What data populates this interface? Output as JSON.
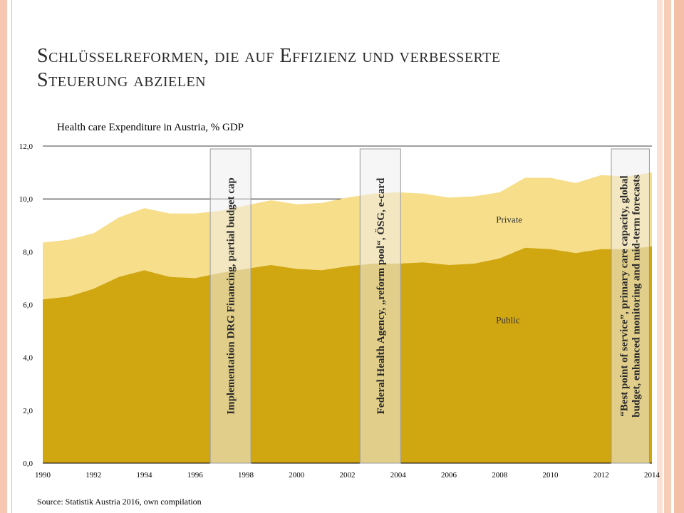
{
  "slide": {
    "title_line1": "Schlüsselreformen, die auf Effizienz und verbesserte",
    "title_line2": "Steuerung abzielen",
    "source": "Source: Statistik Austria 2016, own compilation"
  },
  "chart_data": {
    "type": "area",
    "title": "Health care Expenditure in Austria, % GDP",
    "x": [
      1990,
      1991,
      1992,
      1993,
      1994,
      1995,
      1996,
      1997,
      1998,
      1999,
      2000,
      2001,
      2002,
      2003,
      2004,
      2005,
      2006,
      2007,
      2008,
      2009,
      2010,
      2011,
      2012,
      2013,
      2014
    ],
    "series": [
      {
        "name": "Public",
        "color": "#d0a611",
        "values": [
          6.2,
          6.3,
          6.6,
          7.05,
          7.3,
          7.05,
          7.0,
          7.2,
          7.35,
          7.5,
          7.35,
          7.3,
          7.45,
          7.55,
          7.55,
          7.6,
          7.5,
          7.55,
          7.75,
          8.15,
          8.1,
          7.95,
          8.1,
          8.1,
          8.2
        ]
      },
      {
        "name": "Private",
        "color": "#f7de8a",
        "values": [
          2.15,
          2.15,
          2.1,
          2.25,
          2.35,
          2.4,
          2.45,
          2.35,
          2.4,
          2.45,
          2.45,
          2.55,
          2.6,
          2.65,
          2.7,
          2.6,
          2.55,
          2.55,
          2.5,
          2.65,
          2.7,
          2.65,
          2.8,
          2.75,
          2.8
        ]
      }
    ],
    "ylim": [
      0,
      12
    ],
    "y_ticks": [
      "0,0",
      "2,0",
      "4,0",
      "6,0",
      "8,0",
      "10,0",
      "12,0"
    ],
    "x_ticks": [
      "1990",
      "1992",
      "1994",
      "1996",
      "1998",
      "2000",
      "2002",
      "2004",
      "2006",
      "2008",
      "2010",
      "2012",
      "2014"
    ],
    "annotations": [
      {
        "x_start": 1996.6,
        "x_end": 1998.2,
        "text": "Implementation DRG Financing, partial budget cap"
      },
      {
        "x_start": 2002.5,
        "x_end": 2004.1,
        "text": "Federal Health Agency, „reform pool“, ÖSG, e-card"
      },
      {
        "x_start": 2012.4,
        "x_end": 2013.9,
        "text_line1": "“Best point of service”, primary care capacity, global",
        "text_line2": "budget, enhanced monitoring and mid-term forecasts"
      }
    ]
  }
}
